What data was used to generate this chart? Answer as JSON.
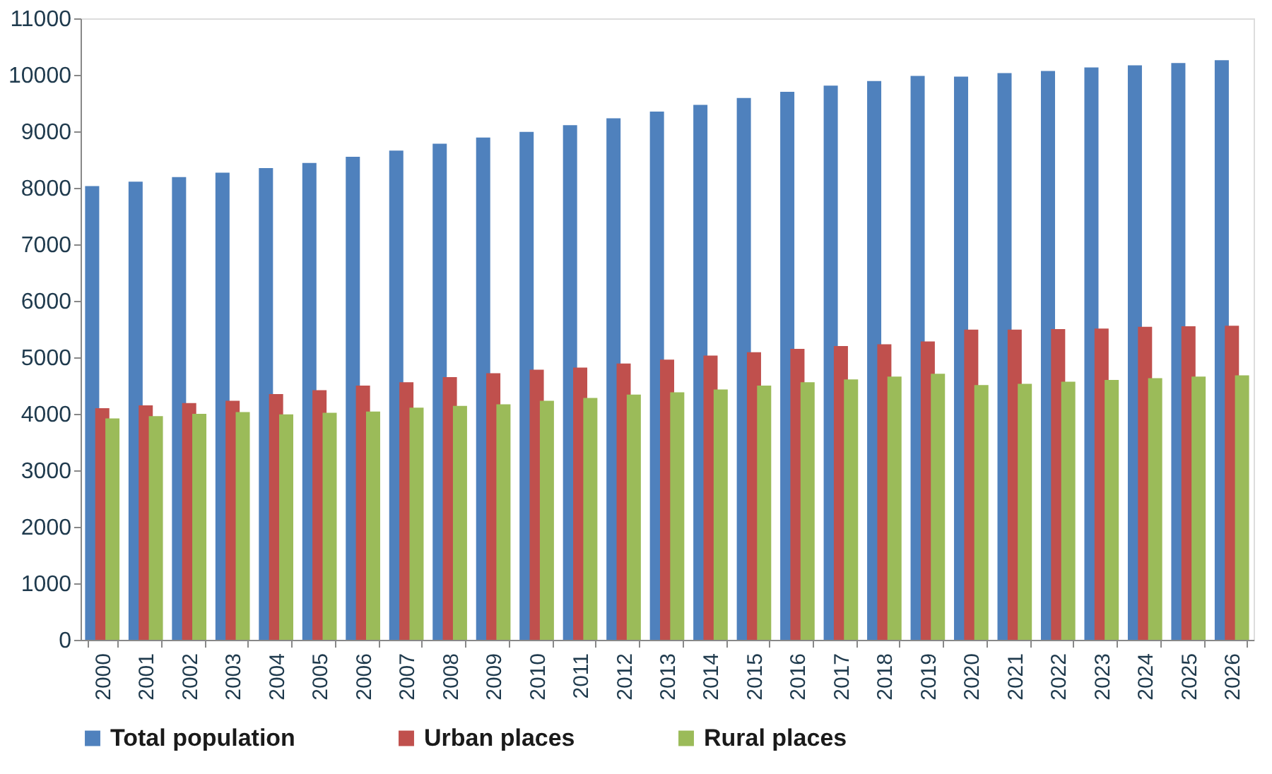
{
  "chart_data": {
    "type": "bar",
    "categories": [
      "2000",
      "2001",
      "2002",
      "2003",
      "2004",
      "2005",
      "2006",
      "2007",
      "2008",
      "2009",
      "2010",
      "2011",
      "2012",
      "2013",
      "2014",
      "2015",
      "2016",
      "2017",
      "2018",
      "2019",
      "2020",
      "2021",
      "2022",
      "2023",
      "2024",
      "2025",
      "2026"
    ],
    "series": [
      {
        "name": "Total population",
        "color": "#4f81bd",
        "values": [
          8030,
          8110,
          8190,
          8270,
          8350,
          8440,
          8550,
          8660,
          8780,
          8890,
          8990,
          9110,
          9230,
          9350,
          9470,
          9590,
          9700,
          9810,
          9890,
          9980,
          9970,
          10030,
          10070,
          10130,
          10170,
          10210,
          10260
        ]
      },
      {
        "name": "Urban places",
        "color": "#c0504d",
        "values": [
          4100,
          4150,
          4190,
          4230,
          4350,
          4420,
          4500,
          4560,
          4650,
          4720,
          4780,
          4820,
          4890,
          4960,
          5030,
          5090,
          5150,
          5200,
          5230,
          5280,
          5490,
          5490,
          5500,
          5510,
          5540,
          5550,
          5560
        ]
      },
      {
        "name": "Rural places",
        "color": "#9bbb59",
        "values": [
          3920,
          3960,
          4000,
          4030,
          3990,
          4020,
          4040,
          4110,
          4140,
          4170,
          4230,
          4280,
          4340,
          4380,
          4430,
          4500,
          4560,
          4610,
          4660,
          4710,
          4510,
          4530,
          4570,
          4600,
          4630,
          4660,
          4680
        ]
      }
    ],
    "ylim": [
      0,
      11000
    ],
    "yticks": [
      0,
      1000,
      2000,
      3000,
      4000,
      5000,
      6000,
      7000,
      8000,
      9000,
      10000,
      11000
    ],
    "grid": false,
    "legend": "bottom"
  }
}
